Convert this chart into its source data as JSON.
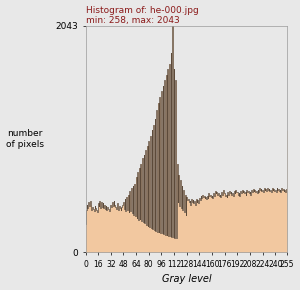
{
  "title_line1": "Histogram of: he-000.jpg",
  "title_line2": "min: 258, max: 2043",
  "xlabel": "Gray level",
  "ylabel": "number\nof pixels",
  "xlim": [
    0,
    255
  ],
  "ylim": [
    0,
    2043
  ],
  "yticks": [
    0,
    2043
  ],
  "xticks": [
    0,
    16,
    32,
    48,
    64,
    80,
    96,
    112,
    128,
    144,
    160,
    176,
    192,
    208,
    224,
    240,
    255
  ],
  "title_color": "#8B1A1A",
  "bar_fill_color": "#F2C8A0",
  "bar_edge_color": "#5C4A3A",
  "background_color": "#E8E8E8",
  "ylabel_fontsize": 6.5,
  "xlabel_fontsize": 7,
  "title_fontsize": 6.5
}
